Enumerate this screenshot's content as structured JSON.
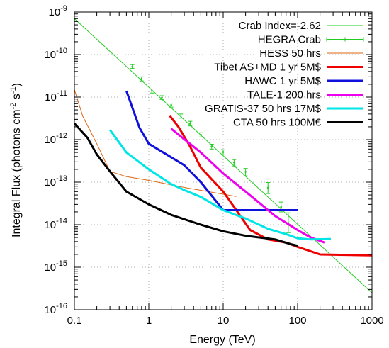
{
  "chart_data": {
    "type": "line",
    "xlabel": "Energy (TeV)",
    "ylabel_parts": {
      "prefix": "Integral Flux (photons cm",
      "sup1": "-2",
      "middle": " s",
      "sup2": "-1",
      "suffix": ")"
    },
    "xscale": "log",
    "yscale": "log",
    "xlim": [
      0.1,
      1000
    ],
    "ylim": [
      1e-16,
      1e-09
    ],
    "x_ticks": [
      {
        "value": 0.1,
        "label": "0.1"
      },
      {
        "value": 1,
        "label": "1"
      },
      {
        "value": 10,
        "label": "10"
      },
      {
        "value": 100,
        "label": "100"
      },
      {
        "value": 1000,
        "label": "1000"
      }
    ],
    "y_ticks": [
      {
        "value": 1e-16,
        "base": "10",
        "exp": "-16"
      },
      {
        "value": 1e-15,
        "base": "10",
        "exp": "-15"
      },
      {
        "value": 1e-14,
        "base": "10",
        "exp": "-14"
      },
      {
        "value": 1e-13,
        "base": "10",
        "exp": "-13"
      },
      {
        "value": 1e-12,
        "base": "10",
        "exp": "-12"
      },
      {
        "value": 1e-11,
        "base": "10",
        "exp": "-11"
      },
      {
        "value": 1e-10,
        "base": "10",
        "exp": "-10"
      },
      {
        "value": 1e-09,
        "base": "10",
        "exp": "-9"
      }
    ],
    "grid": "major dotted",
    "legend_position": "top-right",
    "series": [
      {
        "name": "Crab Index=-2.62",
        "color": "#22cc22",
        "style": "line",
        "points": [
          [
            0.1,
            7e-10
          ],
          [
            1000,
            2.5e-16
          ]
        ]
      },
      {
        "name": "HEGRA Crab",
        "color": "#22cc22",
        "style": "errorbars",
        "points": [
          {
            "x": 0.6,
            "y": 5.2e-11,
            "lo": 4.7e-11,
            "hi": 5.8e-11
          },
          {
            "x": 0.8,
            "y": 2.7e-11,
            "lo": 2.4e-11,
            "hi": 3e-11
          },
          {
            "x": 1.1,
            "y": 1.4e-11,
            "lo": 1.25e-11,
            "hi": 1.55e-11
          },
          {
            "x": 1.5,
            "y": 9.8e-12,
            "lo": 8.8e-12,
            "hi": 1.08e-11
          },
          {
            "x": 2.0,
            "y": 6.5e-12,
            "lo": 5.8e-12,
            "hi": 7.2e-12
          },
          {
            "x": 2.7,
            "y": 3.6e-12,
            "lo": 3.2e-12,
            "hi": 4e-12
          },
          {
            "x": 3.6,
            "y": 2.4e-12,
            "lo": 2.1e-12,
            "hi": 2.7e-12
          },
          {
            "x": 5.0,
            "y": 1.3e-12,
            "lo": 1.15e-12,
            "hi": 1.45e-12
          },
          {
            "x": 7.0,
            "y": 6.9e-13,
            "lo": 6e-13,
            "hi": 7.8e-13
          },
          {
            "x": 10.0,
            "y": 5.1e-13,
            "lo": 4.4e-13,
            "hi": 5.8e-13
          },
          {
            "x": 14.0,
            "y": 2.9e-13,
            "lo": 2.4e-13,
            "hi": 3.4e-13
          },
          {
            "x": 20.0,
            "y": 1.75e-13,
            "lo": 1.4e-13,
            "hi": 2.1e-13
          },
          {
            "x": 40.0,
            "y": 7.4e-14,
            "lo": 5.4e-14,
            "hi": 9.8e-14
          },
          {
            "x": 60.0,
            "y": 2.6e-14,
            "lo": 2e-14,
            "hi": 3.4e-14
          },
          {
            "x": 75.0,
            "y": 1.1e-14,
            "lo": 6.5e-15,
            "hi": 1.9e-14
          }
        ]
      },
      {
        "name": "HESS 50 hrs",
        "color": "#dd6611",
        "style": "line",
        "width": 1,
        "points": [
          [
            0.1,
            1.5e-11
          ],
          [
            0.13,
            3.5e-12
          ],
          [
            0.2,
            8e-13
          ],
          [
            0.3,
            1.8e-13
          ],
          [
            0.5,
            1.35e-13
          ],
          [
            1,
            1.1e-13
          ],
          [
            3,
            7.5e-14
          ],
          [
            10,
            5.2e-14
          ],
          [
            15,
            4.6e-14
          ]
        ]
      },
      {
        "name": "Tibet AS+MD 1 yr 5M$",
        "color": "#ee0000",
        "style": "line",
        "width": 3,
        "points": [
          [
            1.9,
            3.7e-12
          ],
          [
            2.5,
            2e-12
          ],
          [
            3.5,
            7.5e-13
          ],
          [
            5,
            2.2e-13
          ],
          [
            10,
            6e-14
          ],
          [
            15,
            2.2e-14
          ],
          [
            23,
            7.5e-15
          ],
          [
            40,
            4.5e-15
          ],
          [
            70,
            3.8e-15
          ],
          [
            100,
            3e-15
          ],
          [
            200,
            2e-15
          ],
          [
            1000,
            1.9e-15
          ]
        ]
      },
      {
        "name": "HAWC 1 yr 5M$",
        "color": "#1010dd",
        "style": "line",
        "width": 3,
        "points": [
          [
            0.5,
            1.4e-11
          ],
          [
            0.75,
            1.9e-12
          ],
          [
            1,
            8e-13
          ],
          [
            3,
            2.5e-13
          ],
          [
            5,
            1e-13
          ],
          [
            10,
            2.2e-14
          ],
          [
            100,
            2.2e-14
          ]
        ]
      },
      {
        "name": "TALE-1 200 hrs",
        "color": "#ee00ee",
        "style": "line",
        "width": 3,
        "points": [
          [
            2,
            1.8e-12
          ],
          [
            5,
            5e-13
          ],
          [
            10,
            1.6e-13
          ],
          [
            20,
            6e-14
          ],
          [
            50,
            1.6e-14
          ],
          [
            100,
            7.5e-15
          ],
          [
            150,
            5e-15
          ],
          [
            230,
            3.8e-15
          ]
        ]
      },
      {
        "name": "GRATIS-37 50 hrs 17M$",
        "color": "#00e6e6",
        "style": "line",
        "width": 3,
        "points": [
          [
            0.3,
            1.7e-12
          ],
          [
            0.5,
            5e-13
          ],
          [
            1,
            2e-13
          ],
          [
            2,
            9e-14
          ],
          [
            3,
            6.5e-14
          ],
          [
            5,
            4.5e-14
          ],
          [
            10,
            2.2e-14
          ],
          [
            20,
            1.4e-14
          ],
          [
            40,
            8e-15
          ],
          [
            70,
            6e-15
          ],
          [
            100,
            4.8e-15
          ],
          [
            150,
            4.5e-15
          ],
          [
            280,
            4.6e-15
          ]
        ]
      },
      {
        "name": "CTA 50 hrs 100M€",
        "color": "#000000",
        "style": "line",
        "width": 3,
        "points": [
          [
            0.1,
            2.4e-12
          ],
          [
            0.15,
            1.1e-12
          ],
          [
            0.2,
            4.5e-13
          ],
          [
            0.3,
            1.8e-13
          ],
          [
            0.5,
            6e-14
          ],
          [
            1,
            3e-14
          ],
          [
            2,
            1.7e-14
          ],
          [
            5,
            1e-14
          ],
          [
            10,
            7e-15
          ],
          [
            20,
            5.5e-15
          ],
          [
            50,
            4.5e-15
          ],
          [
            80,
            3.5e-15
          ],
          [
            100,
            3.2e-15
          ]
        ]
      }
    ]
  }
}
